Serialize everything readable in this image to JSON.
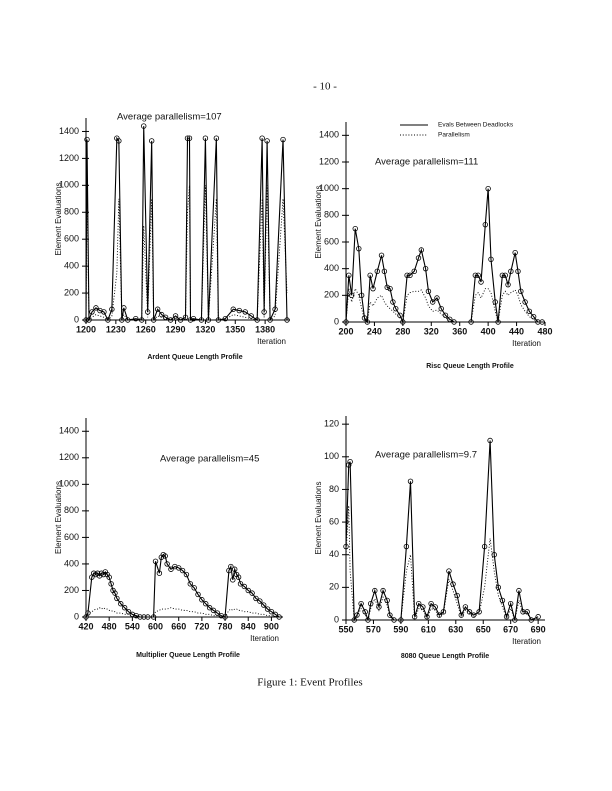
{
  "page_number": "- 10 -",
  "caption": "Figure 1: Event Profiles",
  "chart_data": [
    {
      "type": "line",
      "title": "Ardent Queue Length Profile",
      "annotation": "Average parallelism=107",
      "ylabel": "Element Evaluations",
      "xlabel": "Iteration",
      "xlim": [
        1200,
        1405
      ],
      "xticks": [
        1200,
        1230,
        1260,
        1290,
        1320,
        1350,
        1380
      ],
      "ylim": [
        0,
        1500
      ],
      "yticks": [
        0,
        200,
        400,
        600,
        800,
        1000,
        1200,
        1400
      ],
      "x": [
        1200,
        1201,
        1203,
        1206,
        1210,
        1214,
        1218,
        1222,
        1226,
        1231,
        1233,
        1236,
        1238,
        1242,
        1250,
        1256,
        1258,
        1262,
        1266,
        1268,
        1272,
        1276,
        1280,
        1285,
        1290,
        1295,
        1300,
        1302,
        1304,
        1305,
        1308,
        1316,
        1320,
        1323,
        1331,
        1333,
        1340,
        1348,
        1354,
        1360,
        1366,
        1372,
        1377,
        1379,
        1382,
        1385,
        1390,
        1398,
        1402
      ],
      "series": [
        {
          "color": "#000000",
          "style": "solid",
          "marker": "circle",
          "values": [
            0,
            1340,
            0,
            60,
            90,
            70,
            60,
            0,
            80,
            1350,
            1330,
            0,
            90,
            0,
            10,
            0,
            1440,
            60,
            1330,
            0,
            80,
            40,
            20,
            0,
            30,
            0,
            20,
            1350,
            1350,
            0,
            10,
            0,
            1350,
            0,
            1350,
            0,
            10,
            80,
            70,
            60,
            30,
            0,
            1350,
            60,
            1330,
            0,
            80,
            1340,
            0
          ]
        },
        {
          "color": "#000000",
          "style": "dotted",
          "values": [
            0,
            1000,
            0,
            20,
            40,
            30,
            20,
            0,
            30,
            350,
            900,
            0,
            40,
            0,
            5,
            0,
            700,
            20,
            900,
            0,
            30,
            20,
            10,
            0,
            10,
            0,
            10,
            800,
            1000,
            0,
            5,
            0,
            1000,
            0,
            900,
            0,
            5,
            40,
            30,
            20,
            10,
            0,
            900,
            20,
            1000,
            0,
            30,
            900,
            200
          ]
        }
      ]
    },
    {
      "type": "line",
      "title": "Risc Queue Length Profile",
      "annotation": "Average parallelism=111",
      "ylabel": "Element Evaluations",
      "xlabel": "Iteration",
      "legend": "upper right",
      "xlim": [
        200,
        480
      ],
      "xticks": [
        200,
        240,
        280,
        320,
        360,
        400,
        440,
        480
      ],
      "ylim": [
        0,
        1500
      ],
      "yticks": [
        0,
        200,
        400,
        600,
        800,
        1000,
        1200,
        1400
      ],
      "x": [
        200,
        204,
        208,
        213,
        218,
        222,
        226,
        230,
        234,
        238,
        244,
        250,
        254,
        258,
        262,
        266,
        270,
        276,
        280,
        286,
        290,
        296,
        302,
        306,
        312,
        316,
        322,
        328,
        334,
        340,
        346,
        352,
        376,
        382,
        386,
        390,
        396,
        400,
        404,
        410,
        414,
        420,
        424,
        428,
        432,
        438,
        442,
        446,
        452,
        458,
        464,
        470,
        476
      ],
      "series": [
        {
          "name": "Evals Between Deadlocks",
          "color": "#000000",
          "style": "solid",
          "marker": "circle",
          "values": [
            0,
            350,
            200,
            700,
            550,
            200,
            30,
            0,
            350,
            250,
            380,
            500,
            380,
            260,
            250,
            150,
            100,
            50,
            0,
            350,
            350,
            380,
            480,
            540,
            400,
            230,
            150,
            180,
            100,
            50,
            20,
            0,
            0,
            350,
            350,
            300,
            730,
            1000,
            470,
            150,
            0,
            350,
            350,
            280,
            380,
            520,
            380,
            230,
            150,
            80,
            40,
            0,
            0
          ]
        },
        {
          "name": "Parallelism",
          "color": "#000000",
          "style": "dotted",
          "values": [
            0,
            250,
            150,
            250,
            200,
            100,
            20,
            0,
            150,
            120,
            180,
            200,
            150,
            120,
            100,
            80,
            60,
            30,
            0,
            200,
            220,
            230,
            230,
            240,
            180,
            120,
            80,
            90,
            60,
            30,
            10,
            0,
            0,
            200,
            220,
            180,
            250,
            250,
            220,
            80,
            0,
            200,
            230,
            200,
            220,
            240,
            200,
            130,
            80,
            40,
            20,
            0,
            0
          ]
        }
      ]
    },
    {
      "type": "line",
      "title": "Multiplier Queue Length Profile",
      "annotation": "Average parallelism=45",
      "ylabel": "Element Evaluations",
      "xlabel": "Iteration",
      "xlim": [
        420,
        930
      ],
      "xticks": [
        420,
        480,
        540,
        600,
        660,
        720,
        780,
        840,
        900
      ],
      "ylim": [
        0,
        1500
      ],
      "yticks": [
        0,
        200,
        400,
        600,
        800,
        1000,
        1200,
        1400
      ],
      "x": [
        420,
        425,
        435,
        440,
        445,
        450,
        455,
        460,
        465,
        470,
        475,
        480,
        485,
        490,
        495,
        500,
        510,
        520,
        530,
        540,
        550,
        560,
        570,
        580,
        595,
        600,
        610,
        615,
        620,
        625,
        630,
        640,
        650,
        660,
        670,
        680,
        690,
        700,
        710,
        720,
        730,
        740,
        750,
        760,
        770,
        780,
        790,
        795,
        800,
        805,
        810,
        815,
        820,
        830,
        840,
        850,
        860,
        870,
        880,
        890,
        900,
        910,
        920
      ],
      "series": [
        {
          "color": "#000000",
          "style": "solid",
          "marker": "circle",
          "values": [
            0,
            30,
            300,
            330,
            320,
            330,
            310,
            330,
            320,
            340,
            320,
            300,
            250,
            200,
            180,
            140,
            100,
            70,
            40,
            20,
            10,
            0,
            0,
            0,
            0,
            420,
            330,
            450,
            470,
            460,
            400,
            360,
            380,
            370,
            350,
            320,
            250,
            220,
            170,
            130,
            100,
            70,
            50,
            30,
            10,
            0,
            350,
            380,
            280,
            360,
            320,
            300,
            250,
            230,
            200,
            180,
            140,
            120,
            90,
            60,
            40,
            20,
            0
          ]
        },
        {
          "color": "#000000",
          "style": "dotted",
          "values": [
            0,
            20,
            40,
            50,
            60,
            60,
            70,
            60,
            70,
            60,
            60,
            50,
            50,
            40,
            40,
            30,
            30,
            20,
            20,
            10,
            5,
            0,
            0,
            0,
            0,
            40,
            50,
            60,
            60,
            60,
            60,
            70,
            60,
            60,
            50,
            50,
            40,
            40,
            30,
            30,
            20,
            20,
            10,
            10,
            5,
            0,
            50,
            60,
            50,
            60,
            60,
            50,
            50,
            40,
            40,
            30,
            30,
            20,
            20,
            10,
            10,
            5,
            0
          ]
        }
      ]
    },
    {
      "type": "line",
      "title": "8080 Queue Length Profile",
      "annotation": "Average parallelism=9.7",
      "ylabel": "Element Evaluations",
      "xlabel": "Iteration",
      "xlim": [
        550,
        695
      ],
      "xticks": [
        550,
        570,
        590,
        610,
        630,
        650,
        670,
        690
      ],
      "ylim": [
        0,
        125
      ],
      "yticks": [
        0,
        20,
        40,
        60,
        80,
        100,
        120
      ],
      "x": [
        550,
        552,
        553,
        556,
        558,
        561,
        564,
        566,
        568,
        571,
        574,
        577,
        580,
        582,
        585,
        590,
        594,
        597,
        600,
        603,
        606,
        609,
        612,
        615,
        618,
        621,
        625,
        628,
        631,
        634,
        637,
        640,
        643,
        647,
        651,
        655,
        658,
        661,
        664,
        667,
        670,
        673,
        676,
        679,
        682,
        685,
        690
      ],
      "series": [
        {
          "color": "#000000",
          "style": "solid",
          "marker": "circle",
          "values": [
            45,
            95,
            97,
            0,
            3,
            10,
            5,
            0,
            10,
            18,
            8,
            18,
            12,
            3,
            0,
            0,
            45,
            85,
            2,
            10,
            8,
            2,
            10,
            8,
            3,
            5,
            30,
            22,
            15,
            3,
            8,
            5,
            3,
            5,
            45,
            110,
            40,
            20,
            12,
            2,
            10,
            0,
            18,
            5,
            5,
            0,
            2
          ]
        },
        {
          "color": "#000000",
          "style": "dotted",
          "values": [
            40,
            70,
            30,
            0,
            2,
            7,
            3,
            0,
            7,
            13,
            6,
            14,
            9,
            2,
            0,
            0,
            30,
            40,
            1,
            7,
            6,
            1,
            7,
            6,
            2,
            4,
            25,
            18,
            10,
            2,
            6,
            4,
            2,
            4,
            20,
            50,
            30,
            15,
            8,
            1,
            7,
            0,
            12,
            4,
            4,
            0,
            1
          ]
        }
      ]
    }
  ]
}
